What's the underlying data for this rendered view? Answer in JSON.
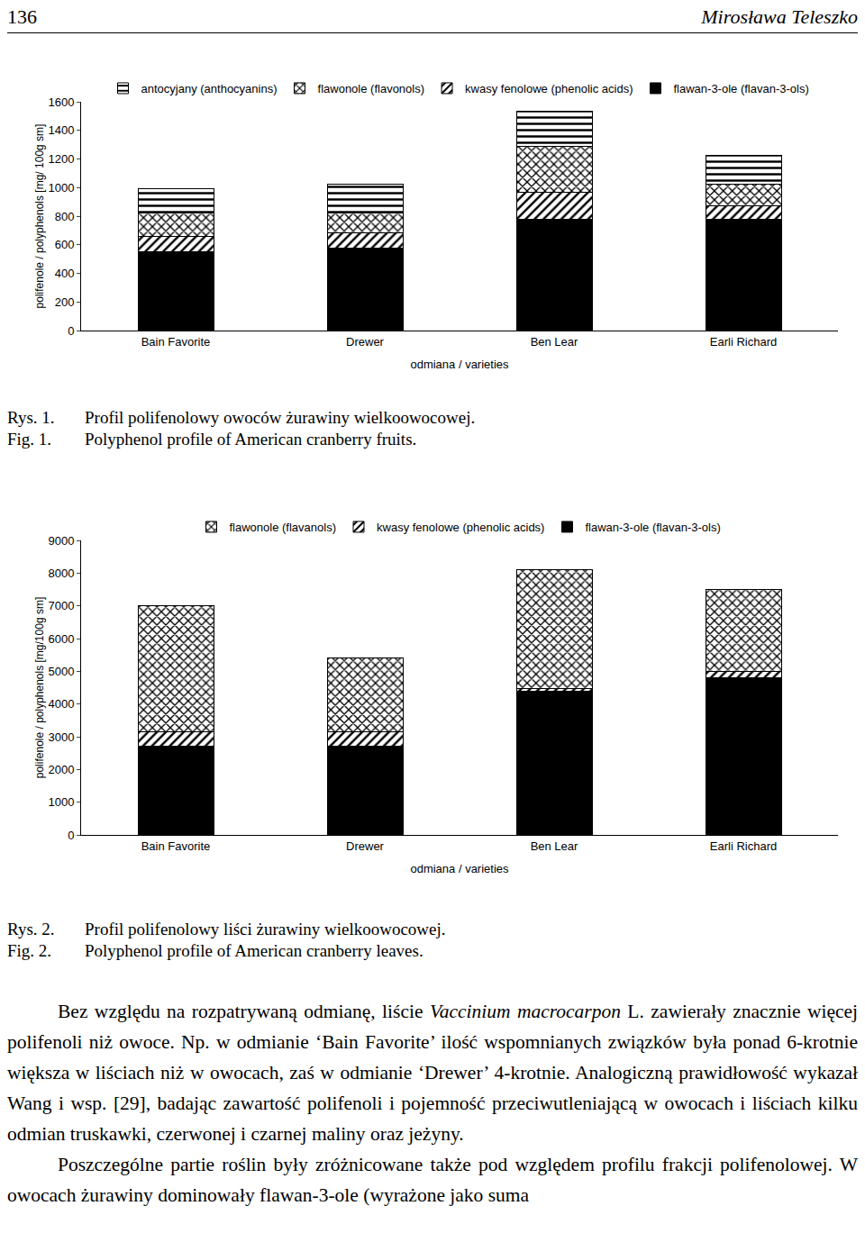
{
  "header": {
    "page": "136",
    "author": "Mirosława Teleszko"
  },
  "chart_data": [
    {
      "type": "bar",
      "stacked": true,
      "grid": false,
      "legend": "top",
      "categories": [
        "Bain Favorite",
        "Drewer",
        "Ben Lear",
        "Earli Richard"
      ],
      "xlabel": "odmiana / varieties",
      "ylabel": "polifenole / polyphenols [mg/ 100g sm]",
      "ylim": [
        0,
        1600
      ],
      "yticks": [
        0,
        200,
        400,
        600,
        800,
        1000,
        1200,
        1400,
        1600
      ],
      "series": [
        {
          "name": "flawan-3-ole (flavan-3-ols)",
          "color": "#000000",
          "marker": "solid",
          "values": [
            550,
            575,
            780,
            780
          ]
        },
        {
          "name": "kwasy fenolowe (phenolic acids)",
          "color": "#000000",
          "marker": "/",
          "values": [
            110,
            110,
            185,
            90
          ]
        },
        {
          "name": "flawonole (flavonols)",
          "color": "#000000",
          "marker": "x",
          "values": [
            165,
            140,
            325,
            155
          ]
        },
        {
          "name": "antocyjany (anthocyanins)",
          "color": "#000000",
          "marker": "-",
          "values": [
            165,
            200,
            245,
            200
          ]
        }
      ]
    },
    {
      "type": "bar",
      "stacked": true,
      "grid": false,
      "legend": "top",
      "categories": [
        "Bain Favorite",
        "Drewer",
        "Ben Lear",
        "Earli Richard"
      ],
      "xlabel": "odmiana / varieties",
      "ylabel": "polifenole / polyphenols [mg/100g sm]",
      "ylim": [
        0,
        9000
      ],
      "yticks": [
        0,
        1000,
        2000,
        3000,
        4000,
        5000,
        6000,
        7000,
        8000,
        9000
      ],
      "series": [
        {
          "name": "flawan-3-ole (flavan-3-ols)",
          "color": "#000000",
          "marker": "solid",
          "values": [
            2700,
            2700,
            4400,
            4800
          ]
        },
        {
          "name": "kwasy fenolowe (phenolic acids)",
          "color": "#000000",
          "marker": "/",
          "values": [
            450,
            450,
            80,
            200
          ]
        },
        {
          "name": "flawonole (flavanols)",
          "color": "#000000",
          "marker": "x",
          "values": [
            3850,
            2250,
            3620,
            2500
          ]
        }
      ]
    }
  ],
  "captions": [
    [
      {
        "label": "Rys. 1.",
        "text": "Profil polifenolowy owoców żurawiny wielkoowocowej."
      },
      {
        "label": "Fig. 1.",
        "text": "Polyphenol profile of American cranberry fruits."
      }
    ],
    [
      {
        "label": "Rys. 2.",
        "text": "Profil polifenolowy liści żurawiny wielkoowocowej."
      },
      {
        "label": "Fig. 2.",
        "text": "Polyphenol profile of American cranberry leaves."
      }
    ]
  ],
  "paragraphs": [
    [
      {
        "text": "Bez względu na rozpatrywaną odmianę, liście "
      },
      {
        "text": "Vaccinium macrocarpon",
        "italic": true
      },
      {
        "text": " L. zawierały znacznie więcej polifenoli niż owoce. Np. w odmianie ‘Bain Favorite’ ilość wspomnianych związków była ponad 6-krotnie większa w liściach niż w owocach, zaś w odmianie ‘Drewer’ 4-krotnie. Analogiczną prawidłowość wykazał Wang i wsp. [29], badając zawartość polifenoli i pojemność przeciwutleniającą w owocach i liściach kilku odmian truskawki, czerwonej i czarnej maliny oraz jeżyny."
      }
    ],
    [
      {
        "text": "Poszczególne partie roślin były zróżnicowane także pod względem profilu frakcji polifenolowej. W owocach żurawiny dominowały flawan-3-ole (wyrażone jako suma"
      }
    ]
  ]
}
